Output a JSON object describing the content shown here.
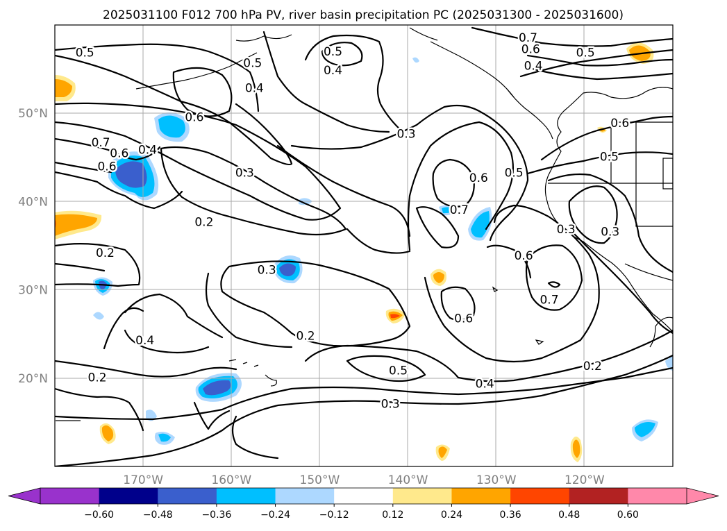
{
  "title": "2025031100 F012 700 hPa PV, river basin precipitation PC (2025031300 - 2025031600)",
  "map": {
    "projection": "cylindrical",
    "lon_range": [
      -180,
      -110
    ],
    "lat_range": [
      10,
      60
    ],
    "lat_ticks": [
      {
        "value": 20,
        "label": "20°N"
      },
      {
        "value": 30,
        "label": "30°N"
      },
      {
        "value": 40,
        "label": "40°N"
      },
      {
        "value": 50,
        "label": "50°N"
      }
    ],
    "lon_ticks": [
      {
        "value": -170,
        "label": "170°W"
      },
      {
        "value": -160,
        "label": "160°W"
      },
      {
        "value": -150,
        "label": "150°W"
      },
      {
        "value": -140,
        "label": "140°W"
      },
      {
        "value": -130,
        "label": "130°W"
      },
      {
        "value": -120,
        "label": "120°W"
      }
    ],
    "grid": true,
    "contour_field": "700 hPa PV",
    "contour_labels": [
      {
        "text": "0.5",
        "lon": -176.6,
        "lat": 56.9
      },
      {
        "text": "0.5",
        "lon": -157.6,
        "lat": 55.7
      },
      {
        "text": "0.4",
        "lon": -157.4,
        "lat": 52.9
      },
      {
        "text": "0.5",
        "lon": -148.5,
        "lat": 57.0
      },
      {
        "text": "0.4",
        "lon": -148.5,
        "lat": 54.9
      },
      {
        "text": "0.7",
        "lon": -126.4,
        "lat": 58.6
      },
      {
        "text": "0.6",
        "lon": -126.1,
        "lat": 57.3
      },
      {
        "text": "0.4",
        "lon": -125.8,
        "lat": 55.4
      },
      {
        "text": "0.5",
        "lon": -119.9,
        "lat": 56.9
      },
      {
        "text": "0.6",
        "lon": -164.2,
        "lat": 49.6
      },
      {
        "text": "0.6",
        "lon": -116.0,
        "lat": 48.9
      },
      {
        "text": "0.7",
        "lon": -174.8,
        "lat": 46.7
      },
      {
        "text": "0.4",
        "lon": -169.5,
        "lat": 45.9
      },
      {
        "text": "0.6",
        "lon": -172.7,
        "lat": 45.5
      },
      {
        "text": "0.6",
        "lon": -174.1,
        "lat": 44.0
      },
      {
        "text": "0.3",
        "lon": -158.5,
        "lat": 43.3
      },
      {
        "text": "0.3",
        "lon": -140.2,
        "lat": 47.7
      },
      {
        "text": "0.5",
        "lon": -117.2,
        "lat": 45.1
      },
      {
        "text": "0.6",
        "lon": -132.0,
        "lat": 42.7
      },
      {
        "text": "0.5",
        "lon": -128.0,
        "lat": 43.3
      },
      {
        "text": "0.7",
        "lon": -134.2,
        "lat": 39.1
      },
      {
        "text": "0.2",
        "lon": -163.1,
        "lat": 37.7
      },
      {
        "text": "0.3",
        "lon": -122.1,
        "lat": 36.9
      },
      {
        "text": "0.3",
        "lon": -117.1,
        "lat": 36.6
      },
      {
        "text": "0.2",
        "lon": -174.3,
        "lat": 34.2
      },
      {
        "text": "0.6",
        "lon": -126.9,
        "lat": 33.9
      },
      {
        "text": "0.3",
        "lon": -156.0,
        "lat": 32.3
      },
      {
        "text": "0.7",
        "lon": -124.0,
        "lat": 28.9
      },
      {
        "text": "0.6",
        "lon": -133.7,
        "lat": 26.8
      },
      {
        "text": "0.2",
        "lon": -151.6,
        "lat": 24.8
      },
      {
        "text": "0.4",
        "lon": -169.8,
        "lat": 24.3
      },
      {
        "text": "0.5",
        "lon": -141.1,
        "lat": 20.9
      },
      {
        "text": "0.2",
        "lon": -175.2,
        "lat": 20.1
      },
      {
        "text": "0.4",
        "lon": -131.3,
        "lat": 19.4
      },
      {
        "text": "0.2",
        "lon": -119.1,
        "lat": 21.4
      },
      {
        "text": "0.3",
        "lon": -142.0,
        "lat": 17.1
      }
    ]
  },
  "colorbar": {
    "ticks": [
      "−0.60",
      "−0.48",
      "−0.36",
      "−0.24",
      "−0.12",
      "0.12",
      "0.24",
      "0.36",
      "0.48",
      "0.60"
    ],
    "colors": [
      "#9932cc",
      "#00008b",
      "#3a5fcd",
      "#00bfff",
      "#add8ff",
      "#ffffff",
      "#ffe98c",
      "#ffa500",
      "#ff4500",
      "#b22222",
      "#ff88aa",
      "#ff88aa"
    ],
    "under_color": "#9932cc",
    "over_color": "#ff88aa",
    "extend": "both"
  }
}
